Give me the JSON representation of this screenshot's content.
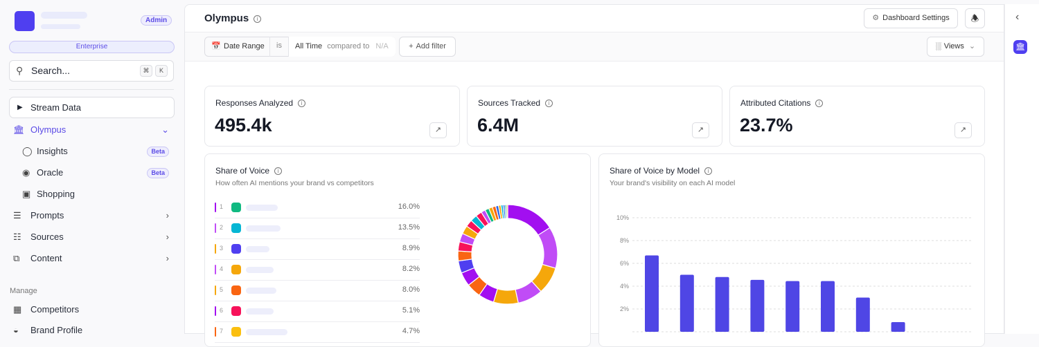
{
  "sidebar": {
    "role_badge": "Admin",
    "plan": "Enterprise",
    "search": {
      "placeholder": "Search...",
      "shortcut": [
        "⌘",
        "K"
      ]
    },
    "stream_label": "Stream Data",
    "nav": [
      {
        "label": "Olympus",
        "icon": "bank-icon",
        "expanded": true,
        "active": true
      },
      {
        "label": "Insights",
        "icon": "lightbulb-icon",
        "badge": "Beta"
      },
      {
        "label": "Oracle",
        "icon": "eye-icon",
        "badge": "Beta"
      },
      {
        "label": "Shopping",
        "icon": "shopping-bag-icon"
      },
      {
        "label": "Prompts",
        "icon": "list-icon"
      },
      {
        "label": "Sources",
        "icon": "tree-icon"
      },
      {
        "label": "Content",
        "icon": "content-icon"
      }
    ],
    "manage_heading": "Manage",
    "manage": [
      {
        "label": "Competitors",
        "icon": "building-icon"
      },
      {
        "label": "Brand Profile",
        "icon": "palette-icon"
      }
    ]
  },
  "header": {
    "title": "Olympus",
    "dashboard_settings": "Dashboard Settings"
  },
  "filters": {
    "field": "Date Range",
    "operator": "is",
    "value": "All Time",
    "compared_label": "compared to",
    "compared_value": "N/A",
    "add_filter": "Add filter",
    "views": "Views"
  },
  "kpis": [
    {
      "label": "Responses Analyzed",
      "value": "495.4k"
    },
    {
      "label": "Sources Tracked",
      "value": "6.4M"
    },
    {
      "label": "Attributed Citations",
      "value": "23.7%"
    }
  ],
  "colors": {
    "accent": "#4f46e5",
    "brand": "#4f3ff0"
  },
  "chart_data": [
    {
      "type": "pie",
      "title": "Share of Voice",
      "subtitle": "How often AI mentions your brand vs competitors",
      "rows": [
        {
          "rank": "1",
          "value": 16.0,
          "label": "16.0%",
          "swatch": "#10b981",
          "color": "#a20ff0"
        },
        {
          "rank": "2",
          "value": 13.5,
          "label": "13.5%",
          "swatch": "#06b6d4",
          "color": "#c04cf6"
        },
        {
          "rank": "3",
          "value": 8.9,
          "label": "8.9%",
          "swatch": "#4f3ff0",
          "color": "#f5a70b"
        },
        {
          "rank": "4",
          "value": 8.2,
          "label": "8.2%",
          "swatch": "#f5a70b",
          "color": "#c04cf6"
        },
        {
          "rank": "5",
          "value": 8.0,
          "label": "8.0%",
          "swatch": "#f96512",
          "color": "#f5a70b"
        },
        {
          "rank": "6",
          "value": 5.1,
          "label": "5.1%",
          "swatch": "#f7125a",
          "color": "#a20ff0"
        },
        {
          "rank": "7",
          "value": 4.7,
          "label": "4.7%",
          "swatch": "#fbbf0f",
          "color": "#f96512"
        }
      ],
      "other_segments": [
        {
          "value": 4.5,
          "color": "#a20ff0"
        },
        {
          "value": 4.0,
          "color": "#4f3ff0"
        },
        {
          "value": 3.2,
          "color": "#f96512"
        },
        {
          "value": 3.0,
          "color": "#f7125a"
        },
        {
          "value": 2.8,
          "color": "#c04cf6"
        },
        {
          "value": 2.7,
          "color": "#f5a70b"
        },
        {
          "value": 2.3,
          "color": "#f7125a"
        },
        {
          "value": 2.2,
          "color": "#06b6d4"
        },
        {
          "value": 2.0,
          "color": "#f7125a"
        },
        {
          "value": 1.4,
          "color": "#c04cf6"
        },
        {
          "value": 1.3,
          "color": "#10b981"
        },
        {
          "value": 1.2,
          "color": "#f5a70b"
        },
        {
          "value": 1.1,
          "color": "#f96512"
        },
        {
          "value": 0.9,
          "color": "#2563eb"
        },
        {
          "value": 0.8,
          "color": "#f5a70b"
        },
        {
          "value": 0.7,
          "color": "#06b6d4"
        },
        {
          "value": 0.6,
          "color": "#2563eb"
        },
        {
          "value": 0.5,
          "color": "#10b981"
        },
        {
          "value": 0.4,
          "color": "#f5a70b"
        }
      ]
    },
    {
      "type": "bar",
      "title": "Share of Voice by Model",
      "subtitle": "Your brand's visibility on each AI model",
      "values": [
        6.7,
        5.0,
        4.8,
        4.55,
        4.45,
        4.45,
        3.0,
        0.85
      ],
      "ylim": [
        0,
        10
      ],
      "yticks": [
        "2%",
        "4%",
        "6%",
        "8%",
        "10%"
      ],
      "grid": true,
      "color": "#4f46e5"
    }
  ]
}
